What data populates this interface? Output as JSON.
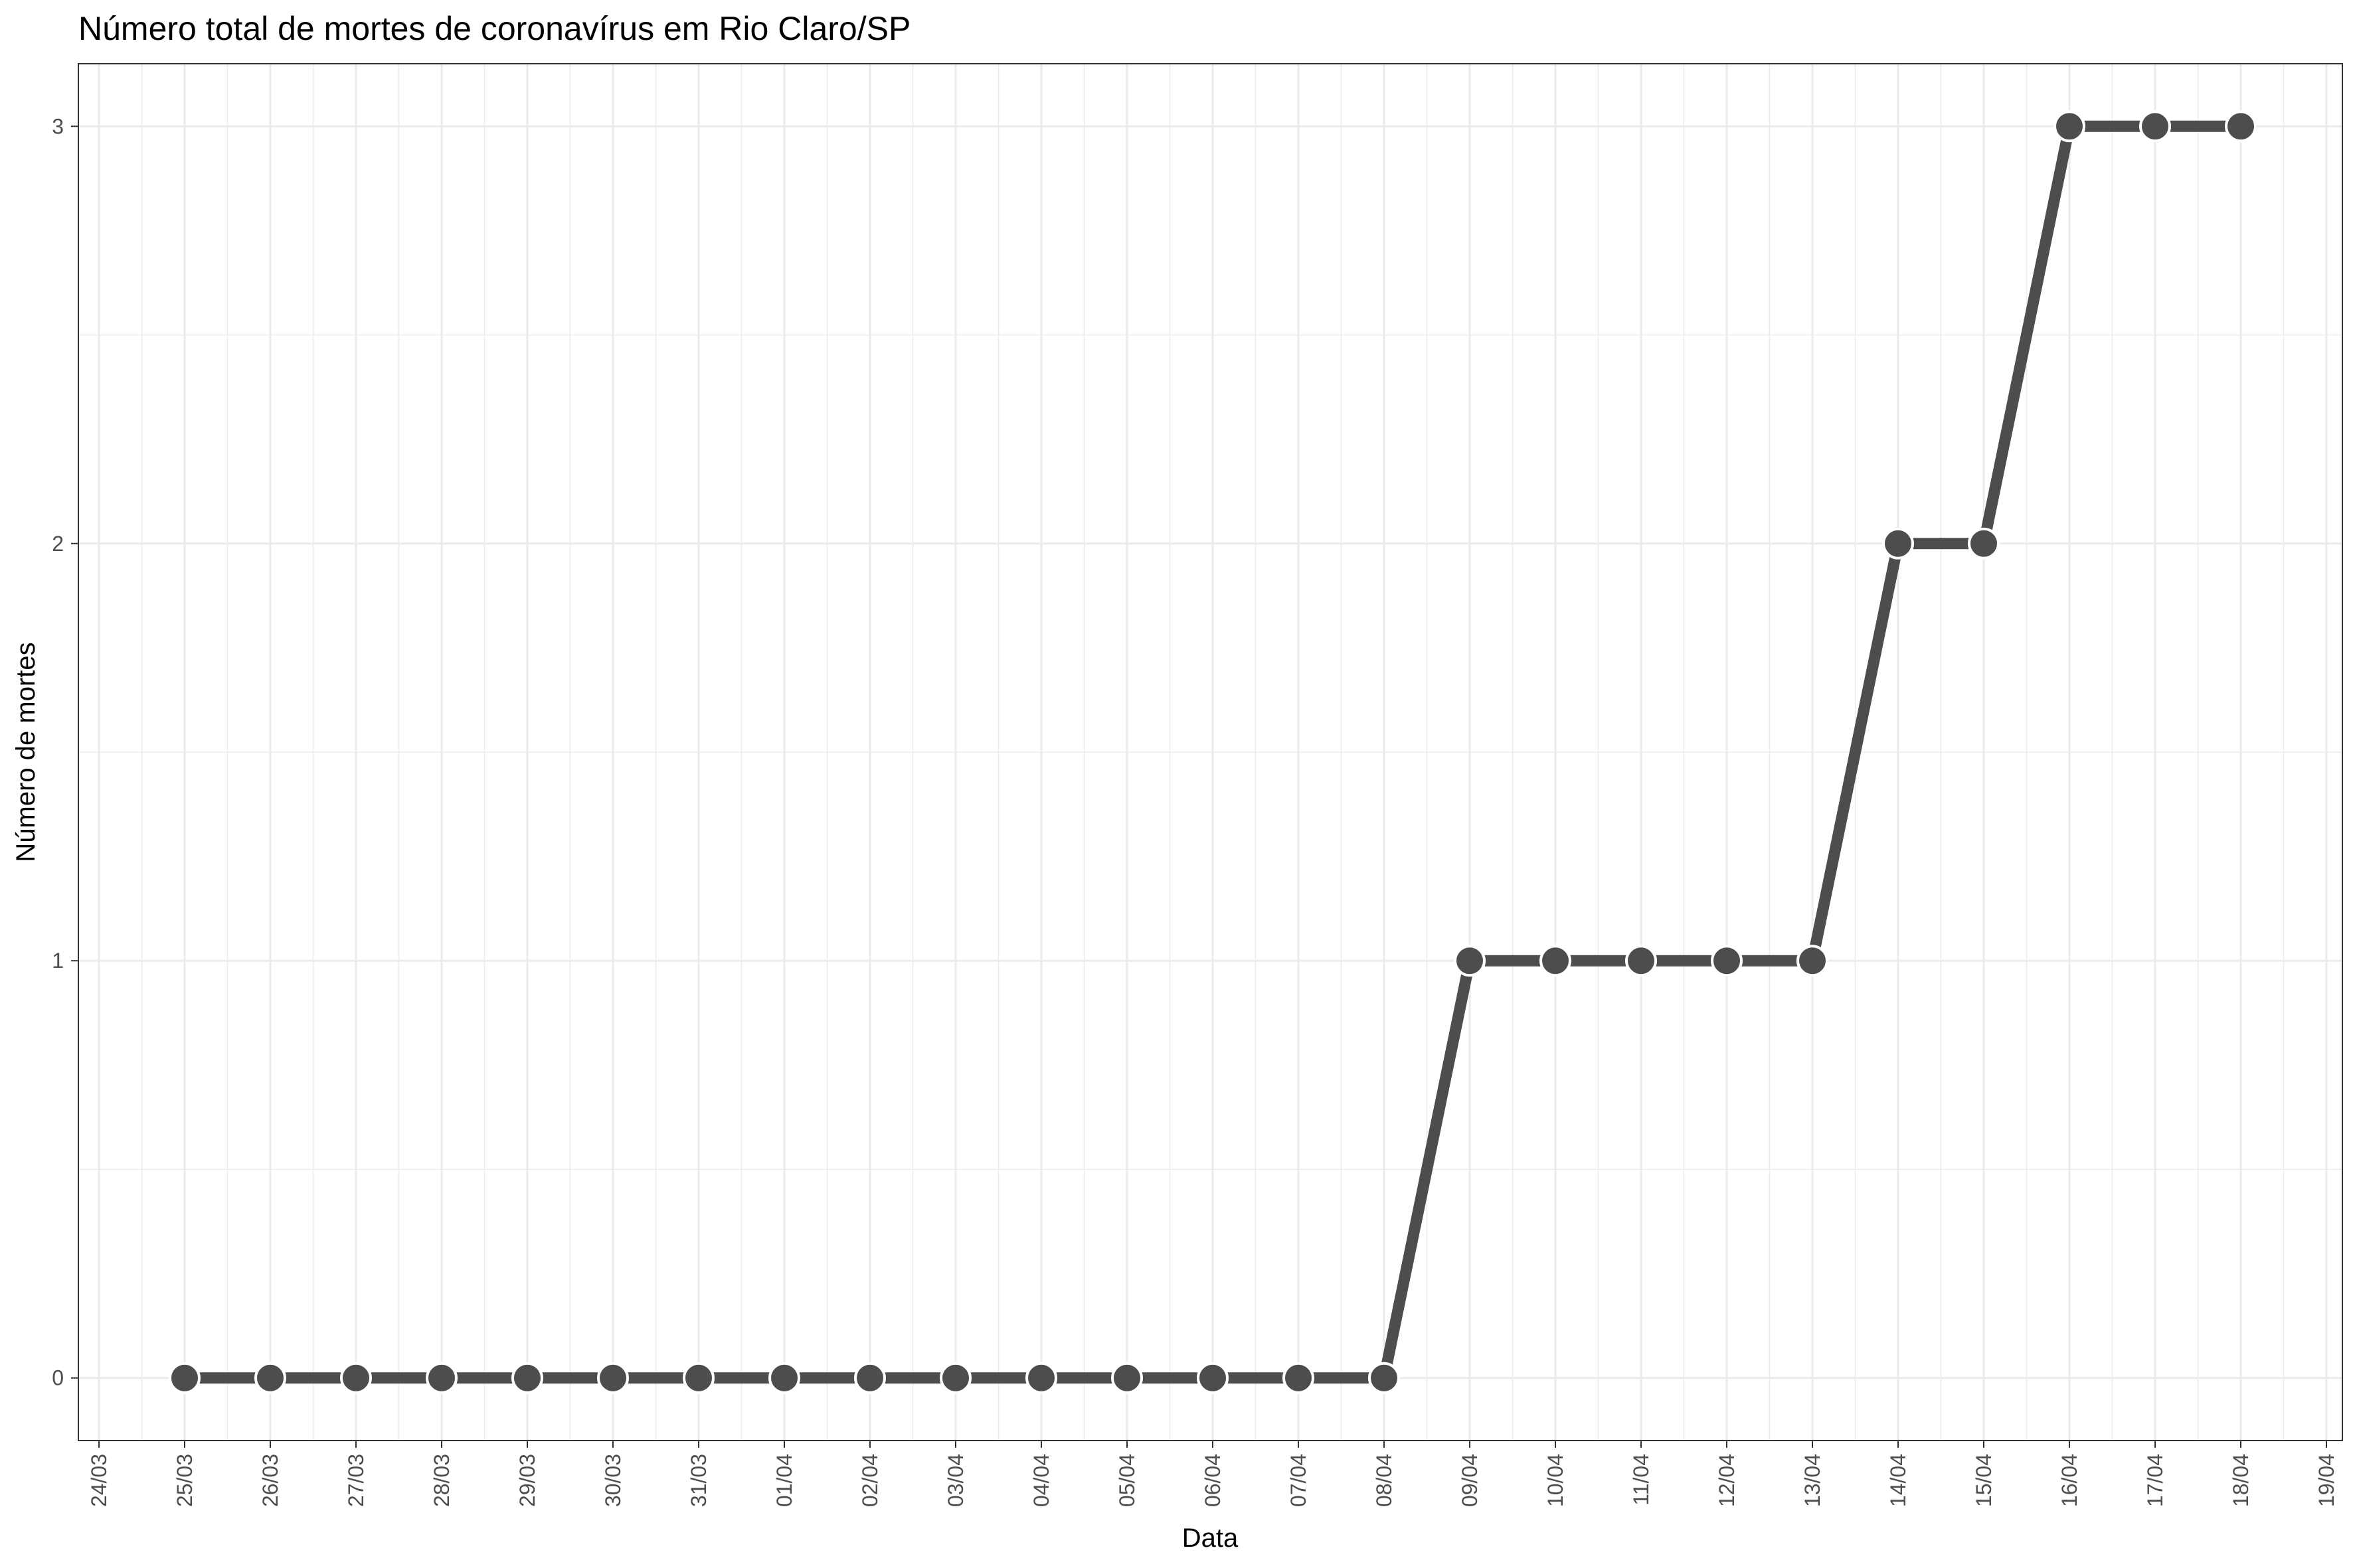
{
  "chart_data": {
    "type": "line",
    "title": "Número total de mortes de coronavírus em Rio Claro/SP",
    "xlabel": "Data",
    "ylabel": "Número de mortes",
    "x_ticks": [
      "24/03",
      "25/03",
      "26/03",
      "27/03",
      "28/03",
      "29/03",
      "30/03",
      "31/03",
      "01/04",
      "02/04",
      "03/04",
      "04/04",
      "05/04",
      "06/04",
      "07/04",
      "08/04",
      "09/04",
      "10/04",
      "11/04",
      "12/04",
      "13/04",
      "14/04",
      "15/04",
      "16/04",
      "17/04",
      "18/04",
      "19/04"
    ],
    "x": [
      "25/03",
      "26/03",
      "27/03",
      "28/03",
      "29/03",
      "30/03",
      "31/03",
      "01/04",
      "02/04",
      "03/04",
      "04/04",
      "05/04",
      "06/04",
      "07/04",
      "08/04",
      "09/04",
      "10/04",
      "11/04",
      "12/04",
      "13/04",
      "14/04",
      "15/04",
      "16/04",
      "17/04",
      "18/04"
    ],
    "values": [
      0,
      0,
      0,
      0,
      0,
      0,
      0,
      0,
      0,
      0,
      0,
      0,
      0,
      0,
      0,
      1,
      1,
      1,
      1,
      1,
      2,
      2,
      3,
      3,
      3
    ],
    "y_ticks": [
      "0",
      "1",
      "2",
      "3"
    ],
    "ylim": [
      -0.15,
      3.15
    ],
    "grid": true,
    "colors": {
      "line": "#4d4d4d",
      "point": "#4d4d4d",
      "point_stroke": "#ffffff",
      "grid": "#ebebeb",
      "panel_border": "#333333"
    }
  }
}
